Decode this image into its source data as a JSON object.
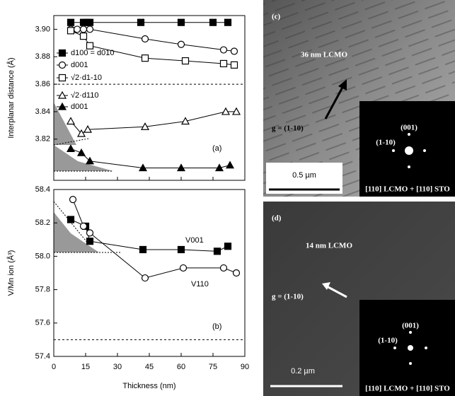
{
  "chart_data": [
    {
      "type": "line",
      "panel_label": "(a)",
      "ylabel": "Interplanar distance (Å)",
      "xlim": [
        0,
        90
      ],
      "xticks": [
        0,
        15,
        30,
        45,
        60,
        75,
        90
      ],
      "ylim": [
        3.79,
        3.91
      ],
      "yticks": [
        3.82,
        3.84,
        3.86,
        {
          "value": 3.9,
          "label": "3.90"
        },
        3.88
      ],
      "reference_line": 3.86,
      "series": [
        {
          "name": "d100 = d010",
          "color": "#000",
          "marker": "square",
          "filled": true,
          "x": [
            8,
            14,
            15.5,
            17,
            41,
            60,
            75,
            82
          ],
          "values": [
            3.905,
            3.905,
            3.905,
            3.905,
            3.905,
            3.905,
            3.905,
            3.905
          ]
        },
        {
          "name": "d001",
          "color": "#000",
          "marker": "circle",
          "filled": false,
          "x": [
            8,
            11,
            14,
            17,
            43,
            60,
            80,
            85
          ],
          "values": [
            3.9,
            3.9,
            3.9,
            3.9,
            3.893,
            3.889,
            3.885,
            3.884
          ]
        },
        {
          "name": "√2·d1-10",
          "color": "#000",
          "marker": "square",
          "filled": false,
          "x": [
            8,
            14,
            17,
            43,
            62,
            80,
            85
          ],
          "values": [
            3.899,
            3.895,
            3.888,
            3.879,
            3.877,
            3.875,
            3.874
          ]
        },
        {
          "name": "√2·d110",
          "color": "#000",
          "marker": "triangle",
          "filled": false,
          "x": [
            8,
            13,
            16,
            43,
            62,
            81,
            86
          ],
          "values": [
            3.833,
            3.824,
            3.827,
            3.829,
            3.833,
            3.84,
            3.84
          ]
        },
        {
          "name": "d001",
          "color": "#000",
          "marker": "triangle",
          "filled": true,
          "x": [
            8,
            13,
            17,
            42,
            60,
            78,
            83
          ],
          "values": [
            3.813,
            3.81,
            3.804,
            3.799,
            3.799,
            3.799,
            3.801
          ]
        }
      ]
    },
    {
      "type": "line",
      "panel_label": "(b)",
      "ylabel": "V/Mn ion (Å³)",
      "xlabel": "Thickness (nm)",
      "xlim": [
        0,
        90
      ],
      "xticks": [
        0,
        15,
        30,
        45,
        60,
        75,
        90
      ],
      "ylim": [
        57.4,
        58.4
      ],
      "yticks": [
        57.4,
        57.6,
        57.8,
        {
          "value": 58,
          "label": "58.0"
        },
        58.2,
        58.4
      ],
      "reference_line": 57.5,
      "series": [
        {
          "name": "V001",
          "color": "#000",
          "marker": "square",
          "filled": true,
          "x": [
            8,
            15,
            17,
            42,
            60,
            77,
            82
          ],
          "values": [
            58.22,
            58.18,
            58.09,
            58.04,
            58.04,
            58.03,
            58.06
          ]
        },
        {
          "name": "V110",
          "color": "#000",
          "marker": "circle",
          "filled": false,
          "x": [
            9,
            14,
            17,
            43,
            61,
            80,
            86
          ],
          "values": [
            58.34,
            58.18,
            58.14,
            57.87,
            57.93,
            57.93,
            57.9
          ]
        }
      ]
    }
  ],
  "panels": [
    {
      "label": "(c)",
      "sample": "36 nm LCMO",
      "vector": "g = (1-10)",
      "scale": "0.5 µm",
      "spot_top": "(001)",
      "spot_left": "(1-10)",
      "zone": "[110] LCMO + [110] STO"
    },
    {
      "label": "(d)",
      "sample": "14 nm LCMO",
      "vector": "g = (1-10)",
      "scale": "0.2 µm",
      "spot_top": "(001)",
      "spot_left": "(1-10)",
      "zone": "[110] LCMO + [110] STO"
    }
  ]
}
